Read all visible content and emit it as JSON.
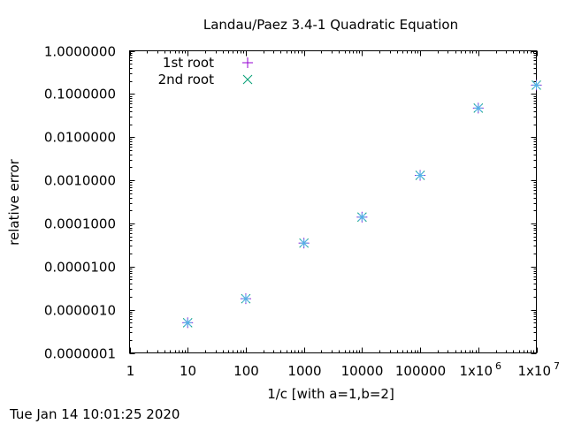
{
  "chart_data": {
    "type": "scatter",
    "title": "Landau/Paez 3.4-1 Quadratic Equation",
    "xlabel": "1/c [with a=1,b=2]",
    "ylabel": "relative error",
    "x_scale": "log",
    "y_scale": "log",
    "xlim": [
      1,
      10000000
    ],
    "ylim": [
      1e-07,
      1
    ],
    "x_ticks": [
      {
        "value": 1,
        "label": "1"
      },
      {
        "value": 10,
        "label": "10"
      },
      {
        "value": 100,
        "label": "100"
      },
      {
        "value": 1000,
        "label": "1000"
      },
      {
        "value": 10000,
        "label": "10000"
      },
      {
        "value": 100000,
        "label": "100000"
      },
      {
        "value": 1000000,
        "label": "1x10",
        "exp": "6"
      },
      {
        "value": 10000000,
        "label": "1x10",
        "exp": "7"
      }
    ],
    "y_ticks": [
      {
        "value": 1e-07,
        "label": "0.0000001"
      },
      {
        "value": 1e-06,
        "label": "0.0000010"
      },
      {
        "value": 1e-05,
        "label": "0.0000100"
      },
      {
        "value": 0.0001,
        "label": "0.0001000"
      },
      {
        "value": 0.001,
        "label": "0.0010000"
      },
      {
        "value": 0.01,
        "label": "0.0100000"
      },
      {
        "value": 0.1,
        "label": "0.1000000"
      },
      {
        "value": 1,
        "label": "1.0000000"
      }
    ],
    "legend_position": "top-left",
    "series": [
      {
        "name": "1st root",
        "marker": "plus",
        "color": "#9400d3",
        "x": [
          10,
          100,
          1000,
          10000,
          100000,
          1000000,
          10000000
        ],
        "y": [
          5e-07,
          1.8e-06,
          3.5e-05,
          0.00014,
          0.0013,
          0.047,
          0.16
        ]
      },
      {
        "name": "2nd root",
        "marker": "cross",
        "color": "#009e73",
        "x": [
          10,
          100,
          1000,
          10000,
          100000,
          1000000,
          10000000
        ],
        "y": [
          5e-07,
          1.8e-06,
          3.5e-05,
          0.00014,
          0.0013,
          0.047,
          0.16
        ]
      }
    ],
    "star_overlay_color": "#56b4e9"
  },
  "footer": {
    "timestamp": "Tue Jan 14 10:01:25 2020"
  }
}
